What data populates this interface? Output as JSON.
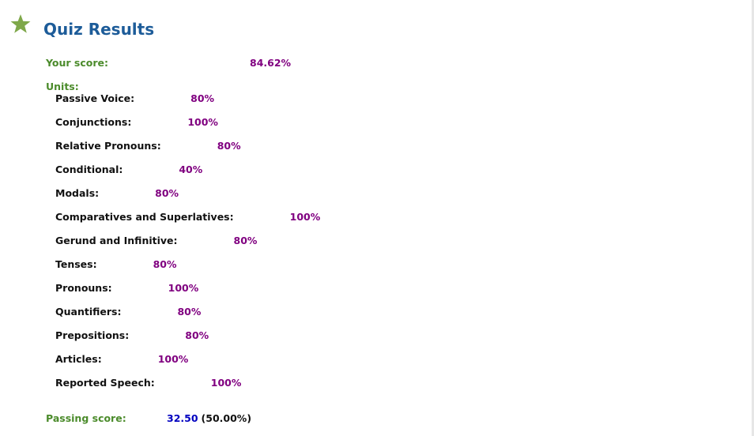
{
  "header": {
    "title": "Quiz Results"
  },
  "score": {
    "label": "Your score:",
    "value": "84.62%"
  },
  "units": {
    "label": "Units:",
    "items": [
      {
        "name": "Passive Voice:",
        "score": "80%"
      },
      {
        "name": "Conjunctions:",
        "score": "100%"
      },
      {
        "name": "Relative Pronouns:",
        "score": "80%"
      },
      {
        "name": "Conditional:",
        "score": "40%"
      },
      {
        "name": "Modals:",
        "score": "80%"
      },
      {
        "name": "Comparatives and Superlatives:",
        "score": "100%"
      },
      {
        "name": "Gerund and Infinitive:",
        "score": "80%"
      },
      {
        "name": "Tenses:",
        "score": "80%"
      },
      {
        "name": "Pronouns:",
        "score": "100%"
      },
      {
        "name": "Quantifiers:",
        "score": "80%"
      },
      {
        "name": "Prepositions:",
        "score": "80%"
      },
      {
        "name": "Articles:",
        "score": "100%"
      },
      {
        "name": "Reported Speech:",
        "score": "100%"
      }
    ]
  },
  "passing": {
    "label": "Passing score:",
    "value": "32.50",
    "percent": "(50.00%)"
  }
}
